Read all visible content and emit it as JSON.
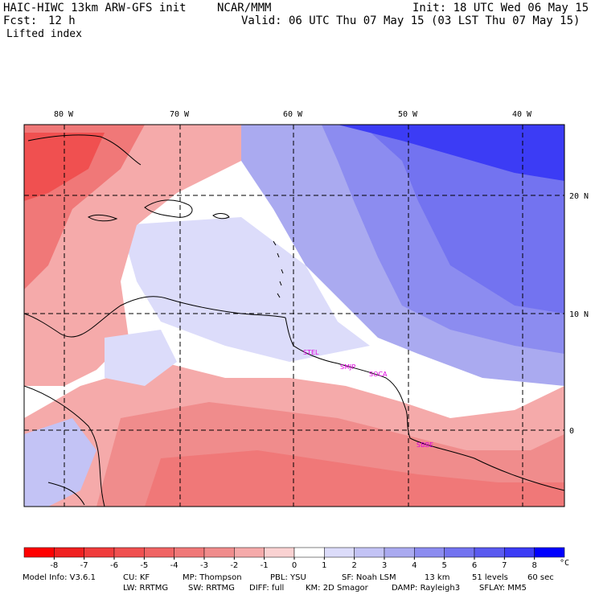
{
  "header": {
    "model_title": "HAIC-HIWC 13km ARW-GFS init",
    "institution": "NCAR/MMM",
    "init_time": "Init: 18 UTC Wed 06 May 15",
    "forecast_label": "Fcst:",
    "forecast_hours": "12 h",
    "valid_time": "Valid: 06 UTC Thu 07 May 15 (03 LST Thu 07 May 15)",
    "field_name": "Lifted index"
  },
  "map": {
    "lon_labels": [
      "80 W",
      "70 W",
      "60 W",
      "50 W",
      "40 W"
    ],
    "lat_labels": [
      "20 N",
      "10 N",
      "0"
    ],
    "stations": [
      "STEL",
      "SMJP",
      "SOCA",
      "SBBE"
    ],
    "colors": {
      "station": "#e000e0",
      "gridline": "#000000",
      "coast": "#000000"
    }
  },
  "colorbar": {
    "ticks": [
      "-8",
      "-7",
      "-6",
      "-5",
      "-4",
      "-3",
      "-2",
      "-1",
      "0",
      "1",
      "2",
      "3",
      "4",
      "5",
      "6",
      "7",
      "8"
    ],
    "unit": "°C",
    "colors": [
      "#ff0000",
      "#f02020",
      "#f03c3c",
      "#f05050",
      "#f06464",
      "#f07878",
      "#f08c8c",
      "#f5aaaa",
      "#fad2d2",
      "#ffffff",
      "#dcdcfa",
      "#c3c3f5",
      "#aaaaf0",
      "#8c8cf0",
      "#7373f0",
      "#5a5af0",
      "#3c3cf5",
      "#0000ff"
    ]
  },
  "footer": {
    "line1": [
      "Model Info: V3.6.1",
      "CU: KF",
      "MP: Thompson",
      "PBL: YSU",
      "SF: Noah LSM",
      "13 km",
      "51 levels",
      "60 sec"
    ],
    "line2": [
      "LW: RRTMG",
      "SW: RRTMG",
      "DIFF: full",
      "KM: 2D Smagor",
      "DAMP: Rayleigh3",
      "SFLAY: MM5"
    ]
  }
}
